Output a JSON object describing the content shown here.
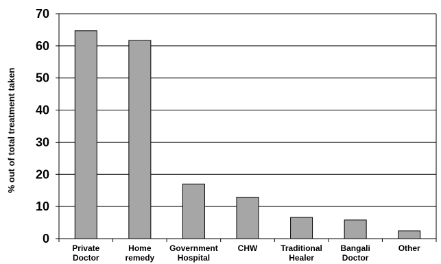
{
  "chart_data": {
    "type": "bar",
    "title": "",
    "xlabel": "",
    "ylabel": "% out of total treatment taken",
    "categories": [
      [
        "Private",
        "Doctor"
      ],
      [
        "Home",
        "remedy"
      ],
      [
        "Government",
        "Hospital"
      ],
      [
        "CHW"
      ],
      [
        "Traditional",
        "Healer"
      ],
      [
        "Bangali",
        "Doctor"
      ],
      [
        "Other"
      ]
    ],
    "values": [
      64.7,
      61.7,
      17,
      12.9,
      6.6,
      5.8,
      2.4
    ],
    "ylim": [
      0,
      70
    ],
    "yticks": [
      0,
      10,
      20,
      30,
      40,
      50,
      60,
      70
    ],
    "grid": true,
    "legend": "none",
    "bar_color": "#a6a6a6",
    "bar_edge_color": "#000000"
  }
}
